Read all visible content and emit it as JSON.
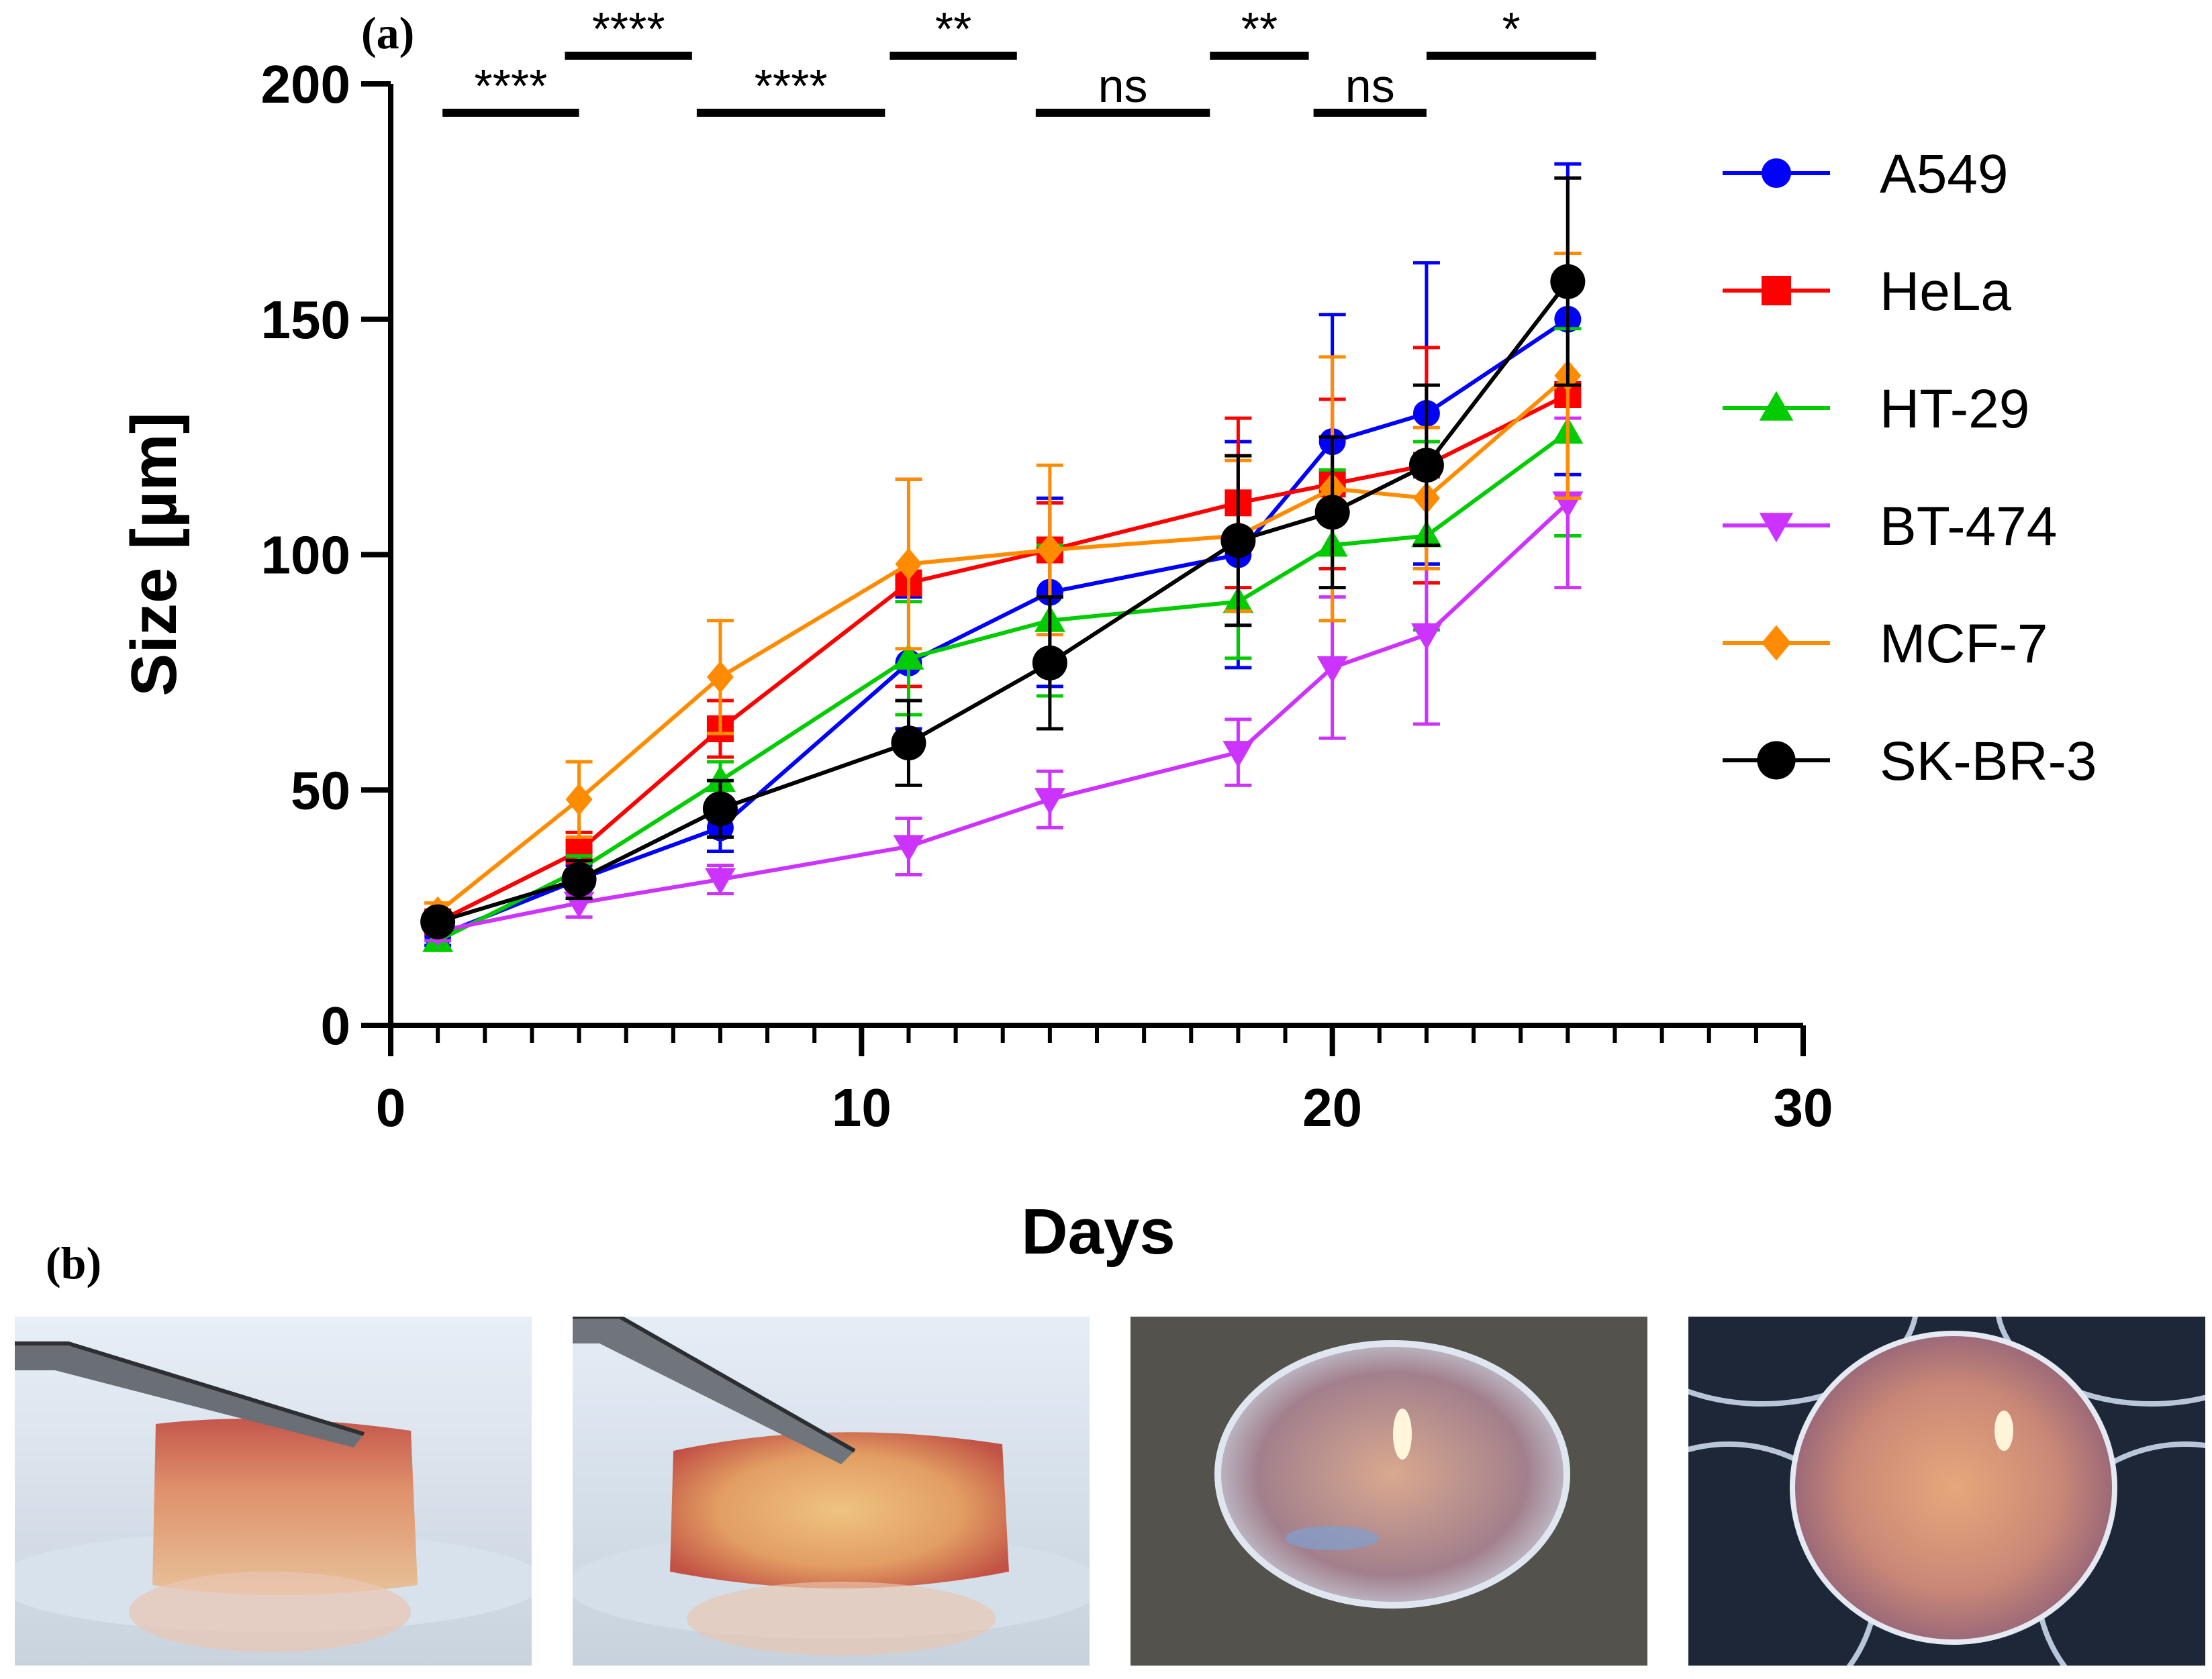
{
  "panel_labels": {
    "a": "(a)",
    "b": "(b)"
  },
  "chart_data": {
    "type": "line",
    "title": "",
    "xlabel": "Days",
    "ylabel": "Size [µm]",
    "xlim": [
      0,
      30
    ],
    "ylim": [
      0,
      200
    ],
    "x_ticks": [
      0,
      10,
      20,
      30
    ],
    "y_ticks": [
      0,
      50,
      100,
      150,
      200
    ],
    "x_tick_labels": [
      "0",
      "10",
      "20",
      "30"
    ],
    "y_tick_labels": [
      "0",
      "50",
      "100",
      "150",
      "200"
    ],
    "x": [
      1,
      4,
      7,
      11,
      14,
      18,
      20,
      22,
      25
    ],
    "legend_position": "right",
    "series": [
      {
        "name": "A549",
        "color": "#0000ff",
        "marker": "circle",
        "values": [
          19,
          31,
          42,
          77,
          92,
          100,
          124,
          130,
          150
        ],
        "errors": [
          2,
          3,
          5,
          14,
          20,
          24,
          27,
          32,
          33
        ]
      },
      {
        "name": "HeLa",
        "color": "#ff0000",
        "marker": "square",
        "values": [
          22,
          37,
          63,
          94,
          101,
          111,
          115,
          119,
          134
        ],
        "errors": [
          2,
          4,
          6,
          22,
          10,
          18,
          18,
          25,
          30
        ]
      },
      {
        "name": "HT-29",
        "color": "#00cc00",
        "marker": "triangle-up",
        "values": [
          18,
          33,
          52,
          78,
          86,
          90,
          102,
          104,
          126
        ],
        "errors": [
          2,
          3,
          4,
          12,
          16,
          12,
          16,
          20,
          22
        ]
      },
      {
        "name": "BT-474",
        "color": "#cc33ff",
        "marker": "triangle-down",
        "values": [
          20,
          26,
          31,
          38,
          48,
          58,
          76,
          83,
          111
        ],
        "errors": [
          2,
          3,
          3,
          6,
          6,
          7,
          15,
          19,
          18
        ]
      },
      {
        "name": "MCF-7",
        "color": "#ff8c00",
        "marker": "diamond",
        "values": [
          24,
          48,
          74,
          98,
          101,
          104,
          114,
          112,
          138
        ],
        "errors": [
          2,
          8,
          12,
          18,
          18,
          16,
          28,
          15,
          26
        ]
      },
      {
        "name": "SK-BR-3",
        "color": "#000000",
        "marker": "circle-large",
        "values": [
          22,
          31,
          46,
          60,
          77,
          103,
          109,
          119,
          158
        ],
        "errors": [
          2,
          4,
          6,
          9,
          14,
          18,
          16,
          17,
          22
        ]
      }
    ],
    "significance": [
      {
        "x_start": 1.1,
        "x_end": 4.0,
        "level": "lower",
        "label": "****"
      },
      {
        "x_start": 3.7,
        "x_end": 6.4,
        "level": "upper",
        "label": "****"
      },
      {
        "x_start": 6.5,
        "x_end": 10.5,
        "level": "lower",
        "label": "****"
      },
      {
        "x_start": 10.6,
        "x_end": 13.3,
        "level": "upper",
        "label": "**"
      },
      {
        "x_start": 13.7,
        "x_end": 17.4,
        "level": "lower",
        "label": "ns"
      },
      {
        "x_start": 17.4,
        "x_end": 19.5,
        "level": "upper",
        "label": "**"
      },
      {
        "x_start": 19.6,
        "x_end": 22.0,
        "level": "lower",
        "label": "ns"
      },
      {
        "x_start": 22.0,
        "x_end": 25.6,
        "level": "upper",
        "label": "*"
      }
    ]
  },
  "photos": [
    {
      "name": "spheroid-photo-side-view-1"
    },
    {
      "name": "spheroid-photo-side-view-2"
    },
    {
      "name": "spheroid-photo-top-view-1"
    },
    {
      "name": "spheroid-photo-in-well"
    }
  ]
}
